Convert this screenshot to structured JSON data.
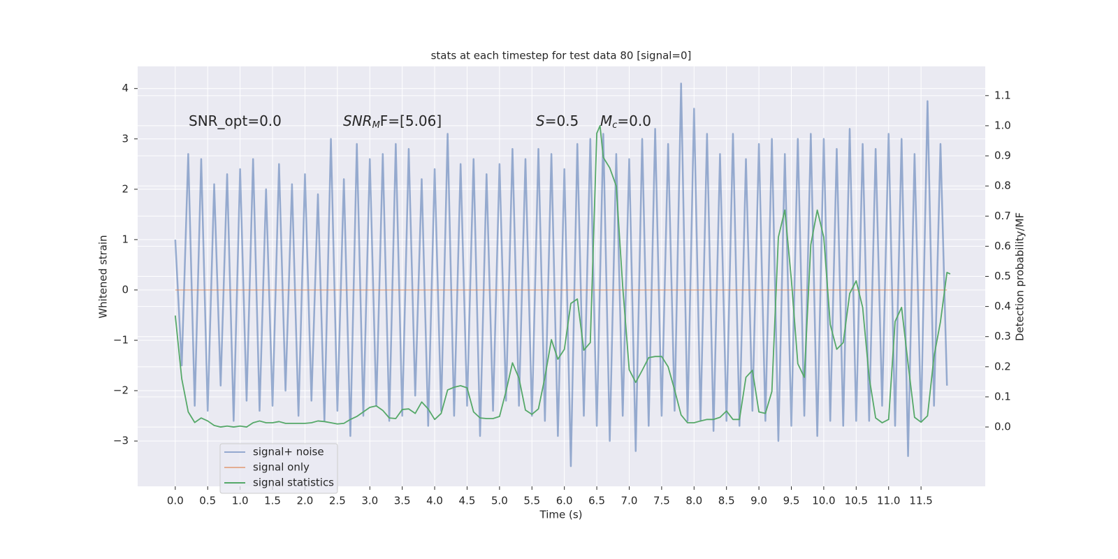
{
  "chart_data": {
    "type": "line",
    "title": "stats at each timestep for test data 80 [signal=0]",
    "xlabel": "Time (s)",
    "ylabel": "Whitened strain",
    "y2label": "Detection probability/MF",
    "annotations": [
      [
        "SNR_opt=0.0"
      ],
      [
        "SNR",
        "M",
        "F=[5.06]"
      ],
      [
        "S",
        "=0.5"
      ],
      [
        "M",
        "c",
        "=0.0"
      ]
    ],
    "xlim": [
      -0.58,
      12.49
    ],
    "ylim": [
      -3.9,
      4.44
    ],
    "y2lim": [
      -0.197,
      1.197
    ],
    "xticks": [
      {
        "value": 0,
        "label": "0.0"
      },
      0.5,
      {
        "value": 1,
        "label": "1.0"
      },
      1.5,
      {
        "value": 2,
        "label": "2.0"
      },
      2.5,
      {
        "value": 3,
        "label": "3.0"
      },
      3.5,
      {
        "value": 4,
        "label": "4.0"
      },
      4.5,
      {
        "value": 5,
        "label": "5.0"
      },
      5.5,
      {
        "value": 6,
        "label": "6.0"
      },
      6.5,
      {
        "value": 7,
        "label": "7.0"
      },
      7.5,
      {
        "value": 8,
        "label": "8.0"
      },
      8.5,
      {
        "value": 9,
        "label": "9.0"
      },
      9.5,
      {
        "value": 10,
        "label": "10.0"
      },
      10.5,
      {
        "value": 11,
        "label": "11.0"
      },
      11.5
    ],
    "yticks": [
      {
        "value": -3,
        "label": "−3"
      },
      {
        "value": -2,
        "label": "−2"
      },
      {
        "value": -1,
        "label": "−1"
      },
      0,
      1,
      2,
      3,
      4
    ],
    "y2ticks": [
      {
        "value": 0,
        "label": "0.0"
      },
      0.1,
      0.2,
      0.3,
      0.4,
      0.5,
      0.6,
      0.7,
      0.8,
      0.9,
      {
        "value": 1,
        "label": "1.0"
      },
      1.1
    ],
    "grid": true,
    "legend": "lower left",
    "series": [
      {
        "name": "signal+ noise",
        "color": "#4c72b0",
        "x": [
          0,
          0.1,
          0.2,
          0.3,
          0.4,
          0.5,
          0.6,
          0.7,
          0.8,
          0.9,
          1,
          1.1,
          1.2,
          1.3,
          1.4,
          1.5,
          1.6,
          1.7,
          1.8,
          1.9,
          2,
          2.1,
          2.2,
          2.3,
          2.4,
          2.5,
          2.6,
          2.7,
          2.8,
          2.9,
          3,
          3.1,
          3.2,
          3.3,
          3.4,
          3.5,
          3.6,
          3.7,
          3.8,
          3.9,
          4,
          4.1,
          4.2,
          4.3,
          4.4,
          4.5,
          4.6,
          4.7,
          4.8,
          4.9,
          5,
          5.1,
          5.2,
          5.3,
          5.4,
          5.5,
          5.6,
          5.7,
          5.8,
          5.9,
          6,
          6.1,
          6.2,
          6.3,
          6.4,
          6.5,
          6.6,
          6.7,
          6.8,
          6.9,
          7,
          7.1,
          7.2,
          7.3,
          7.4,
          7.5,
          7.6,
          7.7,
          7.8,
          7.9,
          8,
          8.1,
          8.2,
          8.3,
          8.4,
          8.5,
          8.6,
          8.7,
          8.8,
          8.9,
          9,
          9.1,
          9.2,
          9.3,
          9.4,
          9.5,
          9.6,
          9.7,
          9.8,
          9.9,
          10,
          10.1,
          10.2,
          10.3,
          10.4,
          10.5,
          10.6,
          10.7,
          10.8,
          10.9,
          11,
          11.1,
          11.2,
          11.3,
          11.4,
          11.5,
          11.6,
          11.7,
          11.8,
          11.9
        ],
        "values": [
          1.0,
          -1.5,
          2.7,
          -2.3,
          2.6,
          -2.4,
          2.1,
          -1.9,
          2.3,
          -2.6,
          2.4,
          -2.2,
          2.6,
          -2.4,
          2.0,
          -2.3,
          2.5,
          -2.0,
          2.1,
          -2.5,
          2.3,
          -2.2,
          1.9,
          -2.6,
          3.0,
          -2.4,
          2.2,
          -2.9,
          2.9,
          -2.5,
          2.6,
          -2.3,
          2.7,
          -2.6,
          2.9,
          -2.5,
          2.8,
          -2.1,
          2.2,
          -2.7,
          2.4,
          -2.4,
          3.1,
          -2.5,
          2.5,
          -2.3,
          2.6,
          -2.9,
          2.3,
          -2.4,
          2.5,
          -2.2,
          2.8,
          -2.3,
          2.6,
          -2.5,
          2.8,
          -2.6,
          2.7,
          -2.9,
          2.4,
          -3.5,
          2.9,
          -2.5,
          3.0,
          -2.7,
          3.1,
          -3.0,
          2.7,
          -2.5,
          2.6,
          -3.2,
          3.0,
          -2.7,
          3.2,
          -2.5,
          2.9,
          -2.4,
          4.1,
          -2.6,
          3.6,
          -2.6,
          3.1,
          -2.8,
          2.7,
          -2.6,
          3.1,
          -2.7,
          2.6,
          -2.4,
          2.9,
          -2.6,
          3.0,
          -3.0,
          2.7,
          -2.7,
          3.0,
          -2.5,
          3.1,
          -2.9,
          3.0,
          -2.6,
          2.8,
          -2.7,
          3.2,
          -2.6,
          2.9,
          -2.6,
          2.8,
          -2.3,
          3.1,
          -2.7,
          3.0,
          -3.3,
          2.7,
          -2.6,
          3.75,
          -2.3,
          2.9,
          -1.9
        ]
      },
      {
        "name": "signal only",
        "color": "#dd8452",
        "x": [
          0,
          11.9
        ],
        "values": [
          0,
          0
        ]
      },
      {
        "name": "signal statistics",
        "color": "#55a868",
        "axis": "y2",
        "x": [
          0,
          0.1,
          0.2,
          0.3,
          0.4,
          0.5,
          0.6,
          0.7,
          0.8,
          0.9,
          1,
          1.1,
          1.2,
          1.3,
          1.4,
          1.5,
          1.6,
          1.7,
          1.8,
          1.9,
          2,
          2.1,
          2.2,
          2.3,
          2.4,
          2.5,
          2.6,
          2.7,
          2.8,
          2.9,
          3,
          3.1,
          3.2,
          3.3,
          3.4,
          3.5,
          3.6,
          3.7,
          3.8,
          3.9,
          4,
          4.1,
          4.2,
          4.3,
          4.4,
          4.5,
          4.6,
          4.7,
          4.8,
          4.9,
          5,
          5.1,
          5.2,
          5.3,
          5.4,
          5.5,
          5.6,
          5.7,
          5.8,
          5.9,
          6,
          6.1,
          6.2,
          6.3,
          6.4,
          6.5,
          6.55,
          6.6,
          6.7,
          6.8,
          6.9,
          7,
          7.1,
          7.2,
          7.3,
          7.4,
          7.5,
          7.6,
          7.7,
          7.8,
          7.9,
          8,
          8.1,
          8.2,
          8.3,
          8.4,
          8.5,
          8.6,
          8.7,
          8.8,
          8.9,
          9,
          9.1,
          9.2,
          9.3,
          9.4,
          9.5,
          9.6,
          9.7,
          9.8,
          9.9,
          10,
          10.1,
          10.2,
          10.3,
          10.4,
          10.5,
          10.6,
          10.7,
          10.8,
          10.9,
          11,
          11.1,
          11.2,
          11.3,
          11.4,
          11.5,
          11.6,
          11.7,
          11.8,
          11.9,
          11.95
        ],
        "values": [
          0.37,
          0.16,
          0.05,
          0.015,
          0.03,
          0.02,
          0.005,
          0.0,
          0.003,
          0.0,
          0.003,
          0.0,
          0.014,
          0.02,
          0.014,
          0.014,
          0.018,
          0.012,
          0.012,
          0.012,
          0.012,
          0.014,
          0.02,
          0.018,
          0.014,
          0.01,
          0.012,
          0.025,
          0.035,
          0.05,
          0.065,
          0.07,
          0.055,
          0.03,
          0.028,
          0.058,
          0.06,
          0.045,
          0.083,
          0.06,
          0.025,
          0.045,
          0.123,
          0.132,
          0.137,
          0.13,
          0.05,
          0.03,
          0.028,
          0.028,
          0.035,
          0.118,
          0.213,
          0.162,
          0.056,
          0.042,
          0.06,
          0.165,
          0.29,
          0.225,
          0.258,
          0.41,
          0.425,
          0.255,
          0.28,
          0.975,
          1.0,
          0.895,
          0.86,
          0.8,
          0.465,
          0.19,
          0.148,
          0.188,
          0.23,
          0.234,
          0.234,
          0.2,
          0.123,
          0.04,
          0.014,
          0.014,
          0.02,
          0.025,
          0.025,
          0.032,
          0.053,
          0.025,
          0.025,
          0.165,
          0.188,
          0.05,
          0.045,
          0.118,
          0.63,
          0.72,
          0.49,
          0.21,
          0.165,
          0.605,
          0.72,
          0.63,
          0.34,
          0.258,
          0.28,
          0.443,
          0.485,
          0.397,
          0.165,
          0.03,
          0.014,
          0.025,
          0.35,
          0.397,
          0.21,
          0.032,
          0.016,
          0.037,
          0.234,
          0.35,
          0.513,
          0.508
        ]
      }
    ]
  }
}
